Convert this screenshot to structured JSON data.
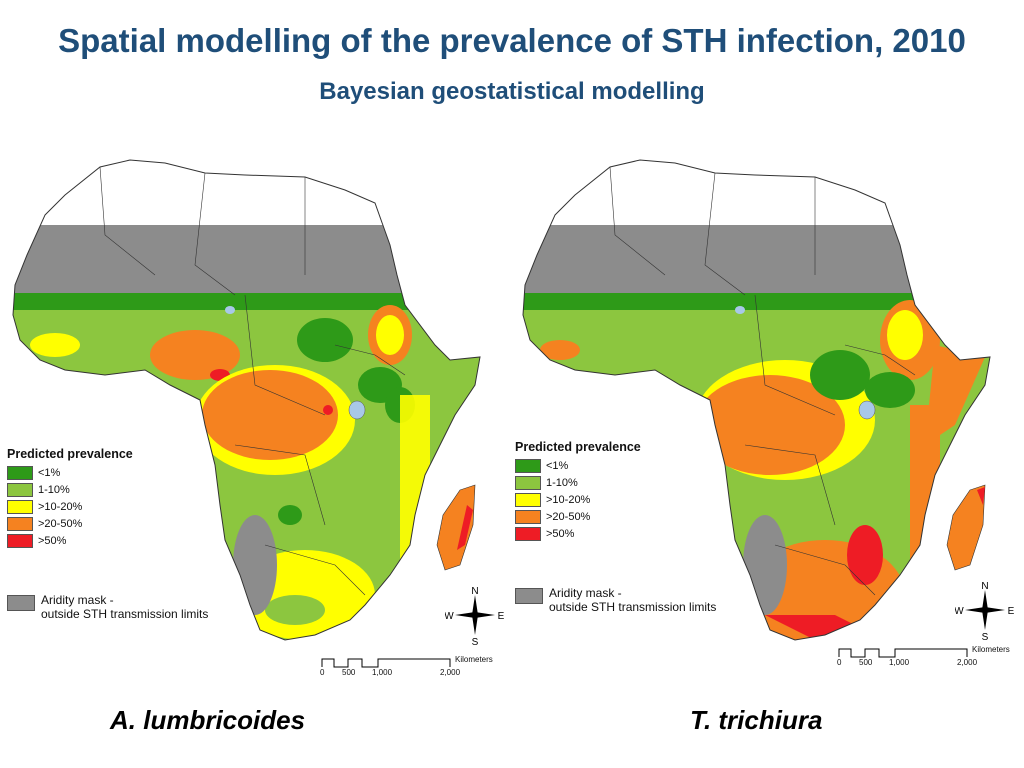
{
  "header": {
    "title": "Spatial modelling of the prevalence of STH infection, 2010",
    "subtitle": "Bayesian geostatistical modelling"
  },
  "legend": {
    "title": "Predicted prevalence",
    "items": [
      {
        "label": "<1%",
        "color": "#2e9a18"
      },
      {
        "label": "1-10%",
        "color": "#8cc63f"
      },
      {
        "label": ">10-20%",
        "color": "#ffff00"
      },
      {
        "label": ">20-50%",
        "color": "#f58220"
      },
      {
        "label": ">50%",
        "color": "#ee1c25"
      }
    ],
    "mask_line1": "Aridity mask -",
    "mask_line2": "outside STH transmission limits",
    "mask_color": "#8c8c8c"
  },
  "compass": {
    "n": "N",
    "s": "S",
    "e": "E",
    "w": "W"
  },
  "scale": {
    "unit": "Kilometers",
    "ticks": [
      "0",
      "500",
      "1,000",
      "2,000"
    ]
  },
  "panels": [
    {
      "species": "A. lumbricoides"
    },
    {
      "species": "T. trichiura"
    }
  ]
}
